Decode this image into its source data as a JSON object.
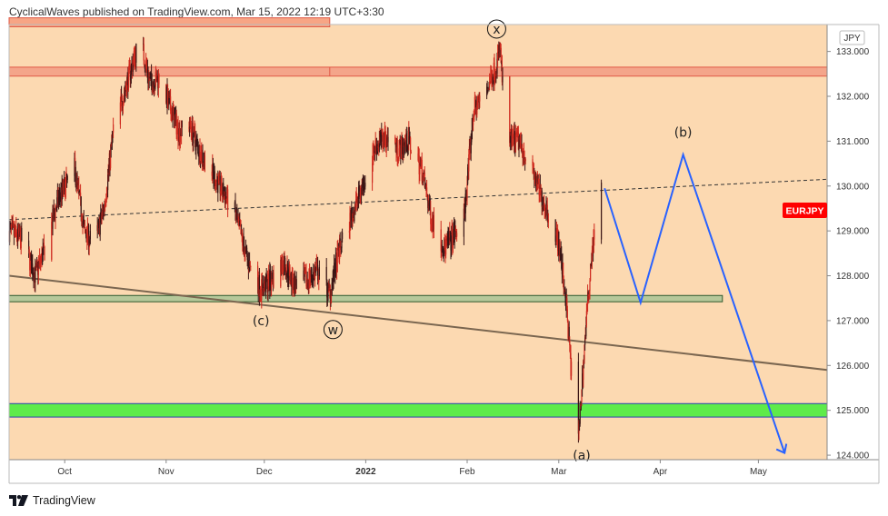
{
  "header": {
    "attribution": "CyclicalWaves published on TradingView.com, Mar 15, 2022 12:19 UTC+3:30"
  },
  "footer": {
    "brand": "TradingView"
  },
  "chart_data": {
    "type": "candlestick",
    "symbol": "EURJPY",
    "currency": "JPY",
    "price_badge": "EURJPY",
    "xlabels": [
      "Oct",
      "Nov",
      "Dec",
      "2022",
      "Feb",
      "Mar",
      "Apr",
      "May"
    ],
    "xticks": [
      "2021-10-01",
      "2021-11-01",
      "2021-12-01",
      "2022-01-01",
      "2022-02-01",
      "2022-03-01",
      "2022-04-01",
      "2022-05-01"
    ],
    "xlim": [
      "2021-09-14",
      "2022-05-22"
    ],
    "yticks": [
      124,
      125,
      126,
      127,
      128,
      129,
      130,
      131,
      132,
      133
    ],
    "ylabels": [
      "124.000",
      "125.000",
      "126.000",
      "127.000",
      "128.000",
      "129.000",
      "130.000",
      "131.000",
      "132.000",
      "133.000"
    ],
    "ylim": [
      123.9,
      133.6
    ],
    "price_path": [
      [
        "2021-09-14",
        129.0
      ],
      [
        "2021-09-18",
        128.8
      ],
      [
        "2021-09-22",
        128.0
      ],
      [
        "2021-09-25",
        128.6
      ],
      [
        "2021-09-29",
        129.7
      ],
      [
        "2021-10-04",
        130.4
      ],
      [
        "2021-10-07",
        129.0
      ],
      [
        "2021-10-10",
        128.7
      ],
      [
        "2021-10-13",
        129.5
      ],
      [
        "2021-10-16",
        131.3
      ],
      [
        "2021-10-20",
        132.3
      ],
      [
        "2021-10-24",
        133.3
      ],
      [
        "2021-10-27",
        132.3
      ],
      [
        "2021-10-30",
        132.4
      ],
      [
        "2021-11-02",
        131.8
      ],
      [
        "2021-11-05",
        131.2
      ],
      [
        "2021-11-08",
        131.4
      ],
      [
        "2021-11-11",
        130.8
      ],
      [
        "2021-11-15",
        130.3
      ],
      [
        "2021-11-18",
        129.9
      ],
      [
        "2021-11-22",
        129.4
      ],
      [
        "2021-11-26",
        128.3
      ],
      [
        "2021-11-30",
        127.7
      ],
      [
        "2021-12-03",
        127.9
      ],
      [
        "2021-12-07",
        128.3
      ],
      [
        "2021-12-10",
        127.8
      ],
      [
        "2021-12-14",
        127.9
      ],
      [
        "2021-12-17",
        128.1
      ],
      [
        "2021-12-21",
        127.6
      ],
      [
        "2021-12-24",
        128.6
      ],
      [
        "2021-12-28",
        129.4
      ],
      [
        "2021-12-31",
        130.0
      ],
      [
        "2022-01-04",
        130.9
      ],
      [
        "2022-01-07",
        131.1
      ],
      [
        "2022-01-11",
        130.8
      ],
      [
        "2022-01-14",
        131.0
      ],
      [
        "2022-01-18",
        130.4
      ],
      [
        "2022-01-21",
        129.3
      ],
      [
        "2022-01-25",
        128.6
      ],
      [
        "2022-01-28",
        128.9
      ],
      [
        "2022-01-31",
        129.3
      ],
      [
        "2022-02-03",
        131.7
      ],
      [
        "2022-02-06",
        132.0
      ],
      [
        "2022-02-10",
        132.7
      ],
      [
        "2022-02-11",
        133.1
      ],
      [
        "2022-02-13",
        131.0
      ],
      [
        "2022-02-17",
        131.0
      ],
      [
        "2022-02-21",
        130.3
      ],
      [
        "2022-02-24",
        129.7
      ],
      [
        "2022-02-27",
        129.2
      ],
      [
        "2022-03-01",
        128.7
      ],
      [
        "2022-03-03",
        127.6
      ],
      [
        "2022-03-05",
        125.7
      ],
      [
        "2022-03-07",
        124.4
      ],
      [
        "2022-03-09",
        126.6
      ],
      [
        "2022-03-11",
        128.5
      ],
      [
        "2022-03-14",
        129.9
      ]
    ],
    "projection": [
      [
        "2022-03-15",
        129.95
      ],
      [
        "2022-03-26",
        127.4
      ],
      [
        "2022-04-08",
        130.7
      ],
      [
        "2022-05-09",
        124.05
      ]
    ],
    "dashed_trendline": [
      [
        "2021-09-14",
        129.25
      ],
      [
        "2022-05-22",
        130.15
      ]
    ],
    "brown_trendline": [
      [
        "2021-09-14",
        128.0
      ],
      [
        "2022-05-22",
        125.9
      ]
    ],
    "zones": [
      {
        "name": "top-resistance",
        "y": [
          133.55,
          133.75
        ],
        "x": [
          "2021-09-14",
          "2021-12-21"
        ],
        "fill": "#f7a585",
        "stroke": "#e05a47"
      },
      {
        "name": "upper-resistance",
        "y": [
          132.45,
          132.65
        ],
        "x": [
          "2021-09-14",
          "2022-05-22"
        ],
        "fill": "#f4a58a",
        "stroke": "#e05a47"
      },
      {
        "name": "support-band",
        "y": [
          127.42,
          127.56
        ],
        "x": [
          "2021-09-14",
          "2022-04-20"
        ],
        "fill": "#b6c89a",
        "stroke": "#2e5a2e"
      },
      {
        "name": "target-band",
        "y": [
          124.85,
          125.15
        ],
        "x": [
          "2021-09-14",
          "2022-05-22"
        ],
        "fill": "#5eeb4a",
        "stroke": "#2d40b0"
      }
    ],
    "annotations": [
      {
        "text": "x",
        "x": "2022-02-10",
        "y": 133.5,
        "circled": true
      },
      {
        "text": "(b)",
        "x": "2022-04-08",
        "y": 131.2,
        "circled": false
      },
      {
        "text": "(c)",
        "x": "2021-11-30",
        "y": 127.0,
        "circled": false
      },
      {
        "text": "w",
        "x": "2021-12-22",
        "y": 126.8,
        "circled": true
      },
      {
        "text": "(a)",
        "x": "2022-03-08",
        "y": 124.0,
        "circled": false
      }
    ],
    "colors": {
      "background": "#fcd9b1",
      "candles": "#cf2a1f",
      "candles_dark": "#3a1515",
      "projection": "#2962ff",
      "dashed_trendline": "#333333",
      "brown_trendline": "#7a6650",
      "badge": "#ff0000"
    }
  }
}
